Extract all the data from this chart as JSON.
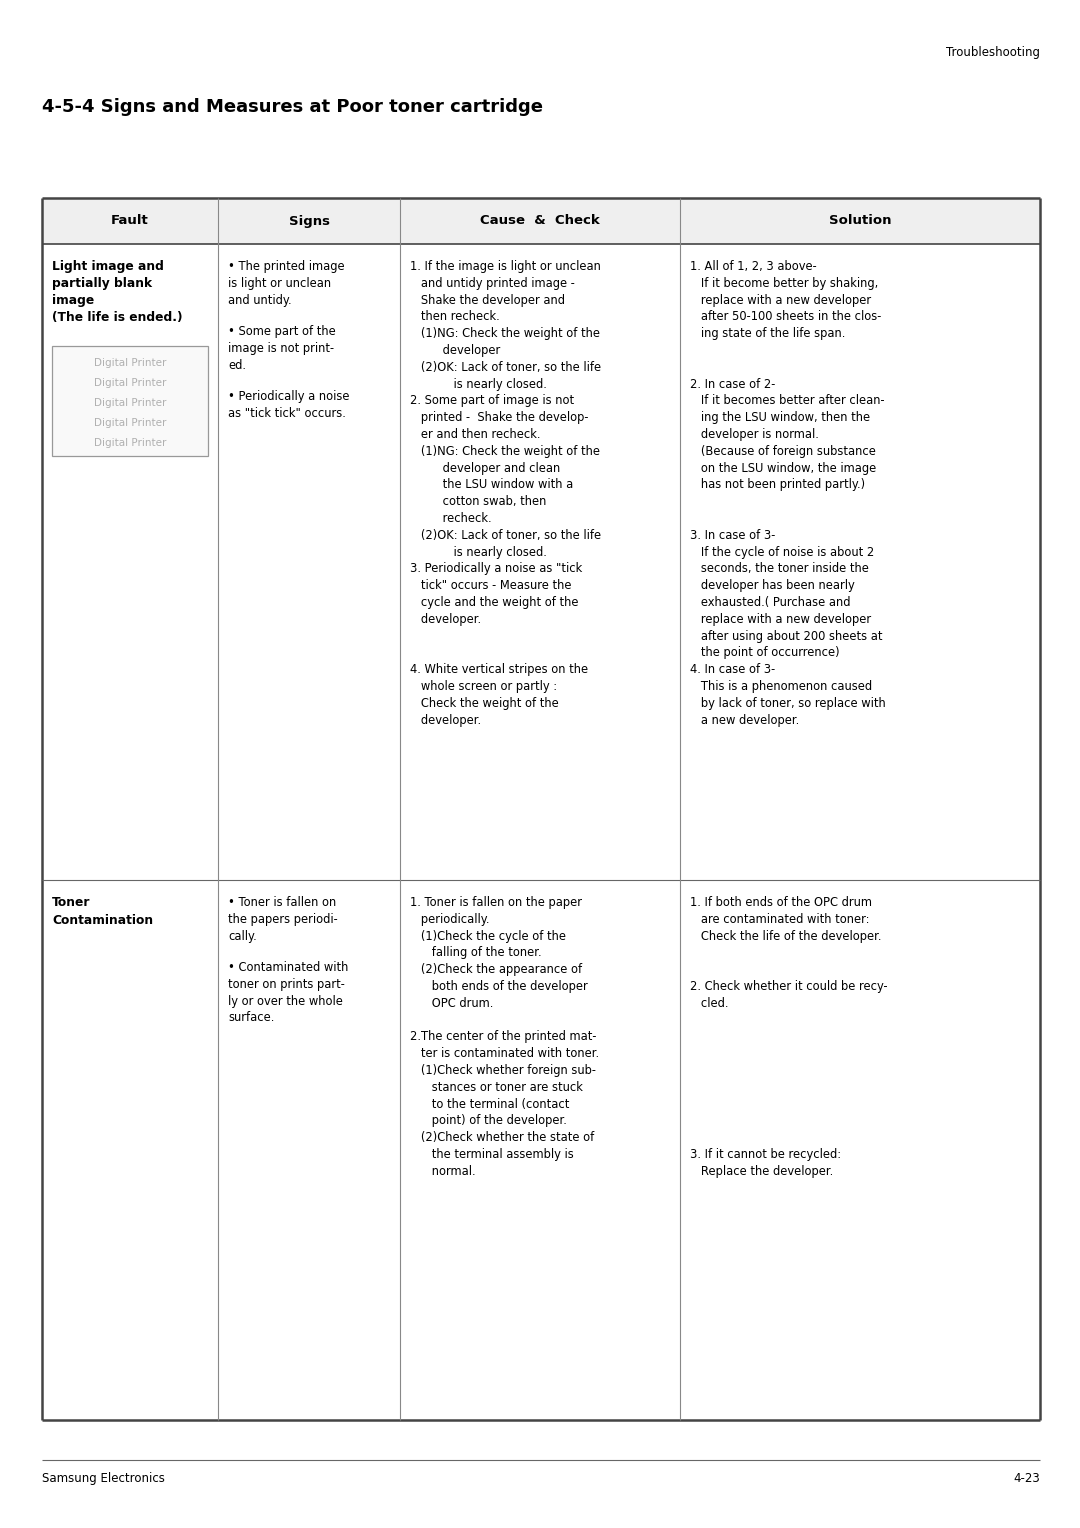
{
  "page_title": "Troubleshooting",
  "section_title": "4-5-4 Signs and Measures at Poor toner cartridge",
  "footer_left": "Samsung Electronics",
  "footer_right": "4-23",
  "col_headers": [
    "Fault",
    "Signs",
    "Cause  &  Check",
    "Solution"
  ],
  "row1_fault": "Light image and\npartially blank\nimage\n(The life is ended.)",
  "row1_signs_bullets": [
    "The printed image\nis light or unclean\nand untidy.",
    "Some part of the\nimage is not print-\ned.",
    "Periodically a noise\nas \"tick tick\" occurs."
  ],
  "row1_cause_lines": [
    "1. If the image is light or unclean",
    "   and untidy printed image -",
    "   Shake the developer and",
    "   then recheck.",
    "   (1)NG: Check the weight of the",
    "         developer",
    "   (2)OK: Lack of toner, so the life",
    "            is nearly closed.",
    "2. Some part of image is not",
    "   printed -  Shake the develop-",
    "   er and then recheck.",
    "   (1)NG: Check the weight of the",
    "         developer and clean",
    "         the LSU window with a",
    "         cotton swab, then",
    "         recheck.",
    "   (2)OK: Lack of toner, so the life",
    "            is nearly closed.",
    "3. Periodically a noise as \"tick",
    "   tick\" occurs - Measure the",
    "   cycle and the weight of the",
    "   developer.",
    "",
    "",
    "4. White vertical stripes on the",
    "   whole screen or partly :",
    "   Check the weight of the",
    "   developer."
  ],
  "row1_solution_lines": [
    "1. All of 1, 2, 3 above-",
    "   If it become better by shaking,",
    "   replace with a new developer",
    "   after 50-100 sheets in the clos-",
    "   ing state of the life span.",
    "",
    "",
    "2. In case of 2-",
    "   If it becomes better after clean-",
    "   ing the LSU window, then the",
    "   developer is normal.",
    "   (Because of foreign substance",
    "   on the LSU window, the image",
    "   has not been printed partly.)",
    "",
    "",
    "3. In case of 3-",
    "   If the cycle of noise is about 2",
    "   seconds, the toner inside the",
    "   developer has been nearly",
    "   exhausted.( Purchase and",
    "   replace with a new developer",
    "   after using about 200 sheets at",
    "   the point of occurrence)",
    "4. In case of 3-",
    "   This is a phenomenon caused",
    "   by lack of toner, so replace with",
    "   a new developer."
  ],
  "row2_fault": "Toner\nContamination",
  "row2_signs_bullets": [
    "Toner is fallen on\nthe papers periodi-\ncally.",
    "Contaminated with\ntoner on prints part-\nly or over the whole\nsurface."
  ],
  "row2_cause_lines": [
    "1. Toner is fallen on the paper",
    "   periodically.",
    "   (1)Check the cycle of the",
    "      falling of the toner.",
    "   (2)Check the appearance of",
    "      both ends of the developer",
    "      OPC drum.",
    "",
    "2.The center of the printed mat-",
    "   ter is contaminated with toner.",
    "   (1)Check whether foreign sub-",
    "      stances or toner are stuck",
    "      to the terminal (contact",
    "      point) of the developer.",
    "   (2)Check whether the state of",
    "      the terminal assembly is",
    "      normal."
  ],
  "row2_solution_lines": [
    "1. If both ends of the OPC drum",
    "   are contaminated with toner:",
    "   Check the life of the developer.",
    "",
    "",
    "2. Check whether it could be recy-",
    "   cled.",
    "",
    "",
    "",
    "",
    "",
    "",
    "",
    "",
    "3. If it cannot be recycled:",
    "   Replace the developer."
  ],
  "image_lines": [
    "Digital Printer",
    "Digital Printer",
    "Digital Printer",
    "Digital Printer",
    "Digital Printer"
  ],
  "bg_color": "#ffffff",
  "text_color": "#000000",
  "gray_text_color": "#b0b0b0",
  "header_bg": "#e8e8e8",
  "line_color": "#666666",
  "img_border_color": "#999999"
}
